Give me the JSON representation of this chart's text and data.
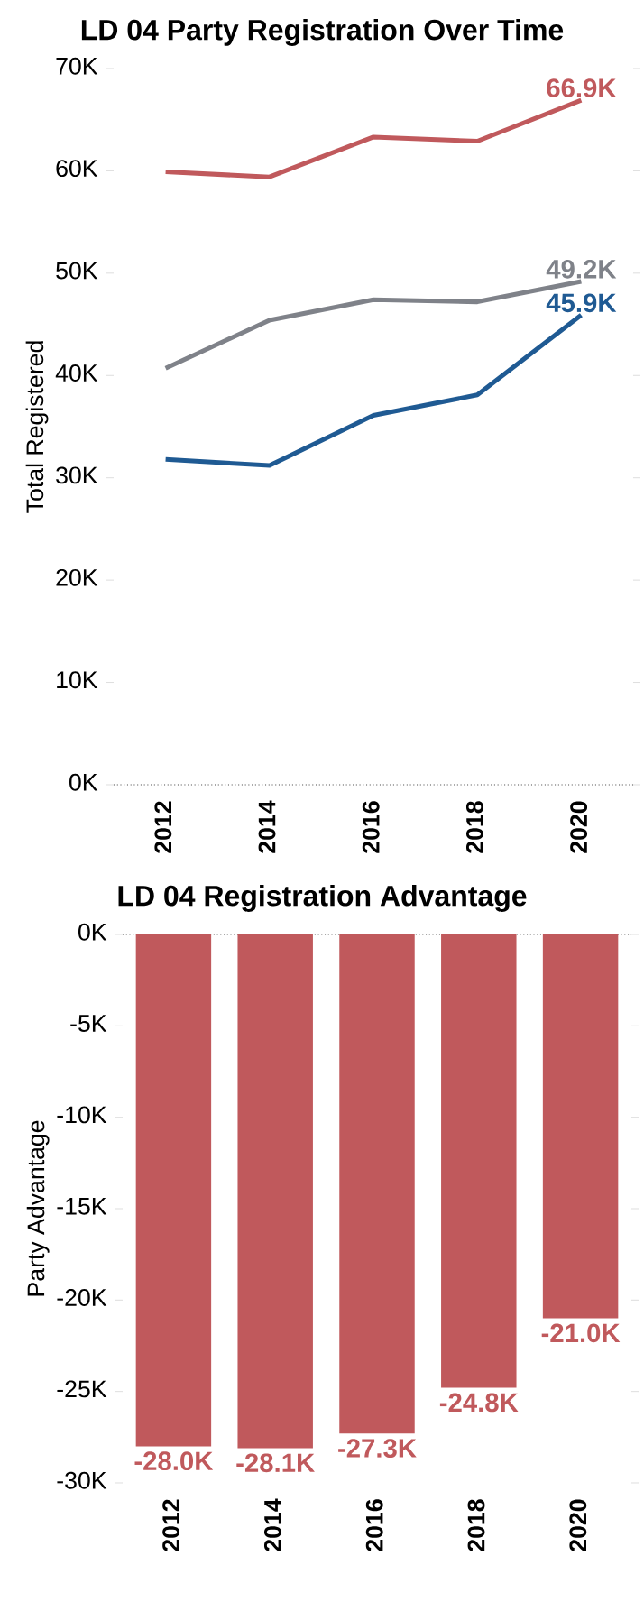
{
  "chart_data": [
    {
      "type": "line",
      "title": "LD 04 Party Registration Over Time",
      "ylabel": "Total Registered",
      "categories": [
        "2012",
        "2014",
        "2016",
        "2018",
        "2020"
      ],
      "ylim": [
        0,
        70
      ],
      "yticks": [
        {
          "value": 0,
          "label": "0K"
        },
        {
          "value": 10,
          "label": "10K"
        },
        {
          "value": 20,
          "label": "20K"
        },
        {
          "value": 30,
          "label": "30K"
        },
        {
          "value": 40,
          "label": "40K"
        },
        {
          "value": 50,
          "label": "50K"
        },
        {
          "value": 60,
          "label": "60K"
        },
        {
          "value": 70,
          "label": "70K"
        }
      ],
      "series": [
        {
          "color": "#c0595c",
          "values": [
            59.9,
            59.4,
            63.3,
            62.9,
            66.9
          ],
          "value_labels": [
            null,
            null,
            null,
            null,
            "66.9K"
          ]
        },
        {
          "color": "#7f8289",
          "values": [
            40.7,
            45.4,
            47.4,
            47.2,
            49.2
          ],
          "value_labels": [
            null,
            null,
            null,
            null,
            "49.2K"
          ]
        },
        {
          "color": "#1f5a93",
          "values": [
            31.8,
            31.2,
            36.1,
            38.1,
            45.9
          ],
          "value_labels": [
            null,
            null,
            null,
            null,
            "45.9K"
          ]
        }
      ]
    },
    {
      "type": "bar",
      "title": "LD 04 Registration Advantage",
      "ylabel": "Party Advantage",
      "categories": [
        "2012",
        "2014",
        "2016",
        "2018",
        "2020"
      ],
      "values": [
        -28.0,
        -28.1,
        -27.3,
        -24.8,
        -21.0
      ],
      "color": "#c0595c",
      "value_labels": [
        "-28.0K",
        "-28.1K",
        "-27.3K",
        "-24.8K",
        "-21.0K"
      ],
      "ylim": [
        -30,
        0
      ],
      "yticks": [
        {
          "value": -30,
          "label": "-30K"
        },
        {
          "value": -25,
          "label": "-25K"
        },
        {
          "value": -20,
          "label": "-20K"
        },
        {
          "value": -15,
          "label": "-15K"
        },
        {
          "value": -10,
          "label": "-10K"
        },
        {
          "value": -5,
          "label": "-5K"
        },
        {
          "value": 0,
          "label": "0K"
        }
      ]
    }
  ]
}
